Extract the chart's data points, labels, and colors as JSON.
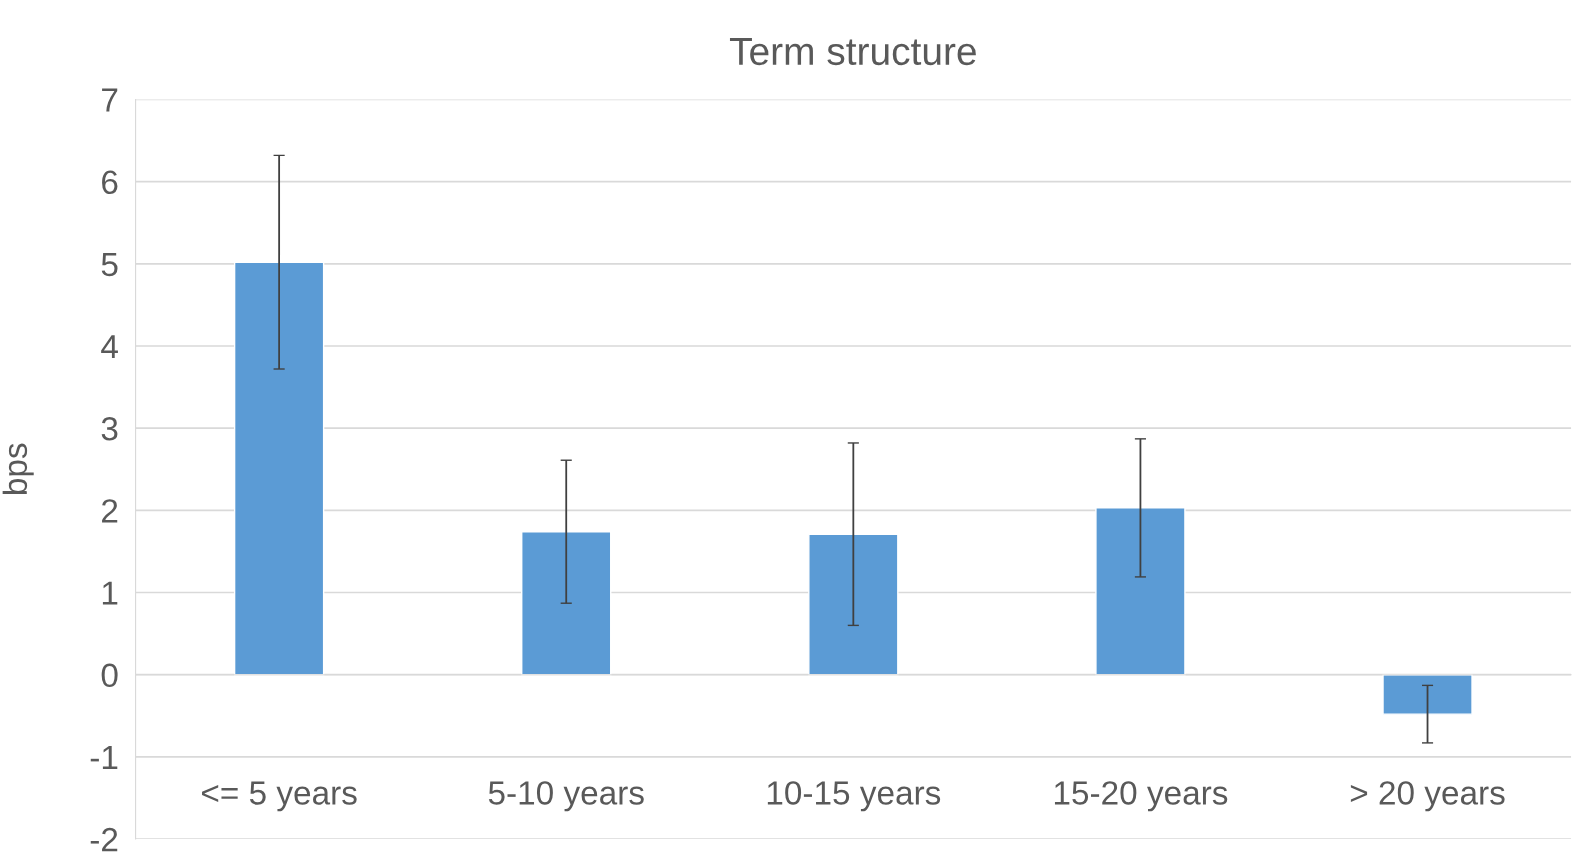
{
  "chart_data": {
    "type": "bar",
    "title": "Term structure",
    "ylabel": "bps",
    "categories": [
      "<= 5 years",
      "5-10 years",
      "10-15 years",
      "15-20 years",
      "> 20 years"
    ],
    "values": [
      5.02,
      1.74,
      1.71,
      2.03,
      -0.48
    ],
    "errors": [
      1.3,
      0.87,
      1.11,
      0.84,
      0.35
    ],
    "color": "#5b9bd5",
    "ylim": [
      -2,
      7
    ],
    "yticks": [
      -2,
      -1,
      0,
      1,
      2,
      3,
      4,
      5,
      6,
      7
    ],
    "grid": "y",
    "legend": false
  }
}
